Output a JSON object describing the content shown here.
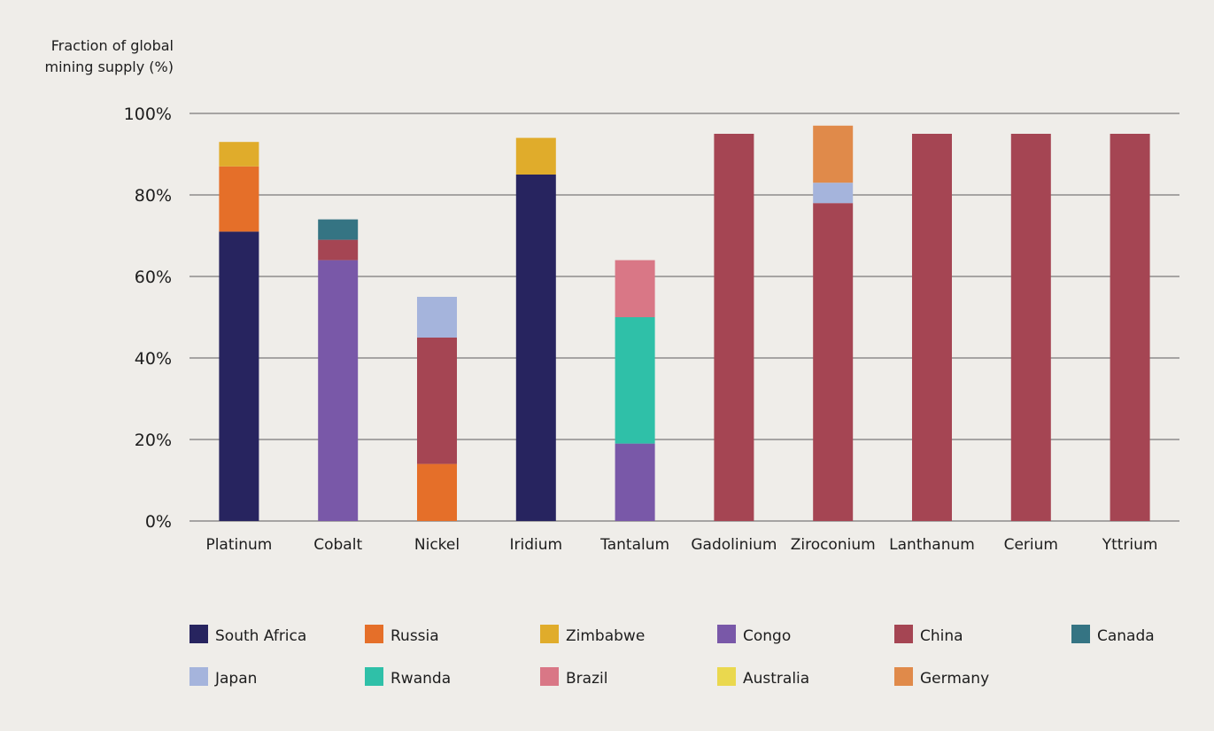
{
  "chart_data": {
    "type": "bar",
    "stacked": true,
    "ylabel": [
      "Fraction of global",
      "mining supply (%)"
    ],
    "ylim": [
      0,
      100
    ],
    "yticks": [
      0,
      20,
      40,
      60,
      80,
      100
    ],
    "ytick_labels": [
      "0%",
      "20%",
      "40%",
      "60%",
      "80%",
      "100%"
    ],
    "grid": true,
    "legend_position": "bottom",
    "categories": [
      "Platinum",
      "Cobalt",
      "Nickel",
      "Iridium",
      "Tantalum",
      "Gadolinium",
      "Ziroconium",
      "Lanthanum",
      "Cerium",
      "Yttrium"
    ],
    "series": [
      {
        "name": "South Africa",
        "color": "#27245f",
        "values": [
          71,
          0,
          0,
          85,
          0,
          0,
          0,
          0,
          0,
          0
        ]
      },
      {
        "name": "Russia",
        "color": "#e56f29",
        "values": [
          16,
          0,
          14,
          0,
          0,
          0,
          0,
          0,
          0,
          0
        ]
      },
      {
        "name": "Zimbabwe",
        "color": "#e0ac2b",
        "values": [
          6,
          0,
          0,
          9,
          0,
          0,
          0,
          0,
          0,
          0
        ]
      },
      {
        "name": "Congo",
        "color": "#7958a8",
        "values": [
          0,
          64,
          0,
          0,
          19,
          0,
          0,
          0,
          0,
          0
        ]
      },
      {
        "name": "China",
        "color": "#a54553",
        "values": [
          0,
          5,
          31,
          0,
          0,
          95,
          78,
          95,
          95,
          95
        ]
      },
      {
        "name": "Canada",
        "color": "#357483",
        "values": [
          0,
          5,
          0,
          0,
          0,
          0,
          0,
          0,
          0,
          0
        ]
      },
      {
        "name": "Japan",
        "color": "#a5b4dc",
        "values": [
          0,
          0,
          10,
          0,
          0,
          0,
          5,
          0,
          0,
          0
        ]
      },
      {
        "name": "Rwanda",
        "color": "#2fc0a8",
        "values": [
          0,
          0,
          0,
          0,
          31,
          0,
          0,
          0,
          0,
          0
        ]
      },
      {
        "name": "Brazil",
        "color": "#d97786",
        "values": [
          0,
          0,
          0,
          0,
          14,
          0,
          0,
          0,
          0,
          0
        ]
      },
      {
        "name": "Australia",
        "color": "#ead84e",
        "values": [
          0,
          0,
          0,
          0,
          0,
          0,
          0,
          0,
          0,
          0
        ]
      },
      {
        "name": "Germany",
        "color": "#e08a4a",
        "values": [
          0,
          0,
          0,
          0,
          0,
          0,
          14,
          0,
          0,
          0
        ]
      }
    ]
  }
}
